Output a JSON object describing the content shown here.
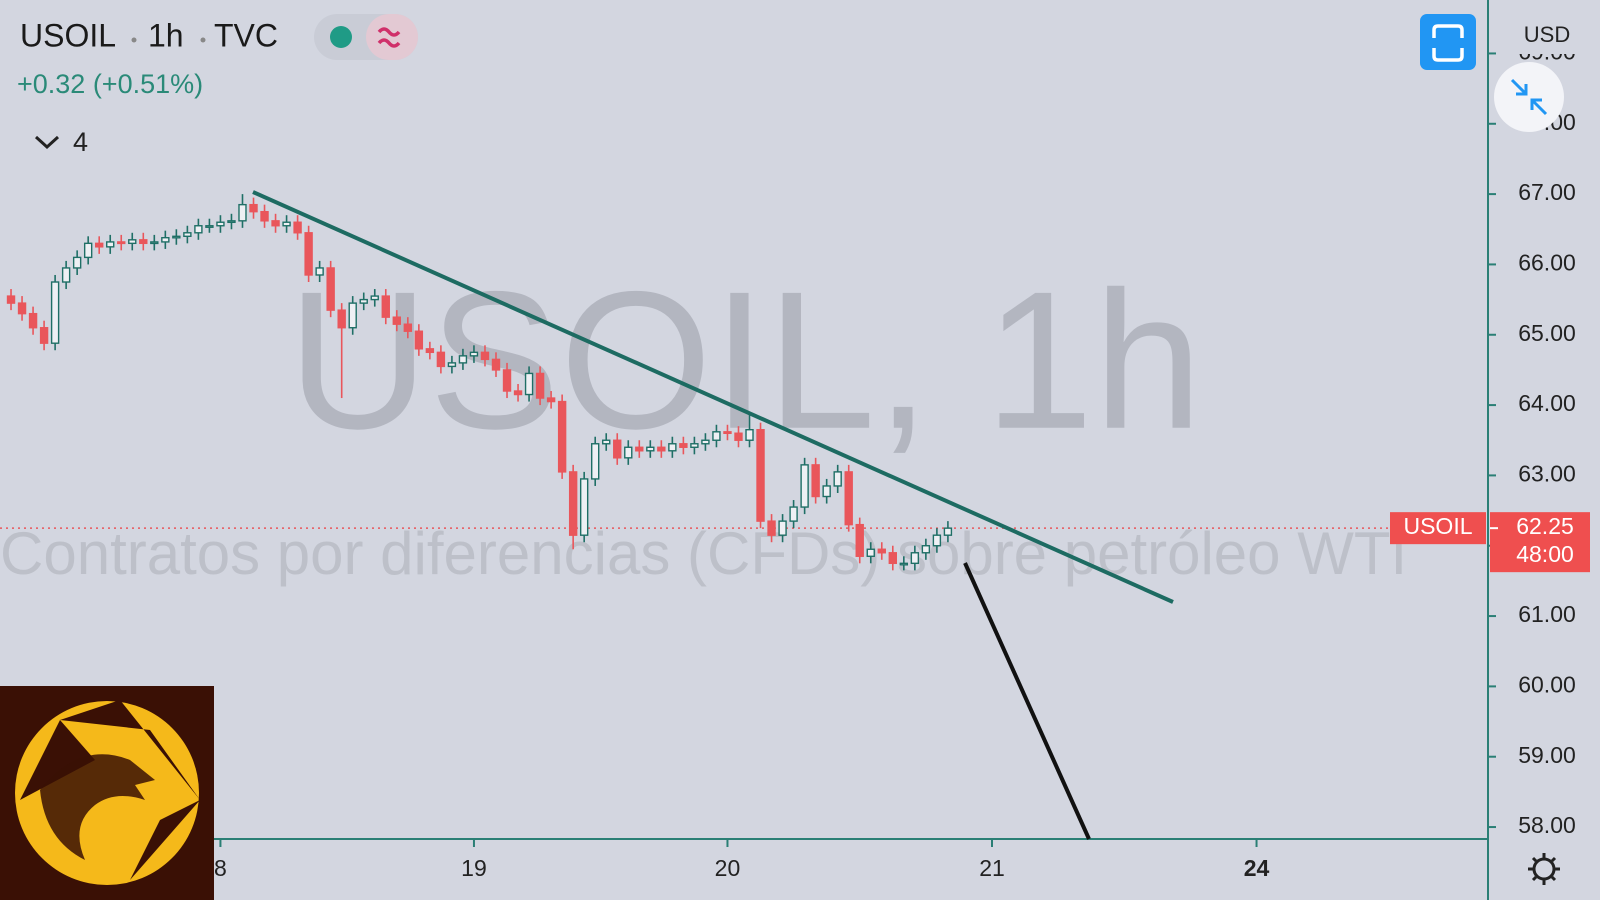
{
  "header": {
    "symbol": "USOIL",
    "interval": "1h",
    "exchange": "TVC",
    "change": "+0.32 (+0.51%)",
    "indicator_count": "4",
    "currency": "USD"
  },
  "chart_data": {
    "type": "candlestick",
    "watermark": "USOIL, 1h",
    "subtitle": "Contratos por diferencias (CFDs) sobre petróleo WTI",
    "xlim": [
      -43,
      92
    ],
    "xticks": [
      {
        "value": -23,
        "label": "8"
      },
      {
        "value": 0,
        "label": "19"
      },
      {
        "value": 23,
        "label": "20"
      },
      {
        "value": 47,
        "label": "21"
      },
      {
        "value": 71,
        "label": "24"
      }
    ],
    "ylim": [
      57.83,
      69.76
    ],
    "yticks": [
      {
        "value": 58,
        "label": "58.00"
      },
      {
        "value": 59,
        "label": "59.00"
      },
      {
        "value": 60,
        "label": "60.00"
      },
      {
        "value": 61,
        "label": "61.00"
      },
      {
        "value": 62,
        "label": "62.00"
      },
      {
        "value": 63,
        "label": "63.00"
      },
      {
        "value": 64,
        "label": "64.00"
      },
      {
        "value": 65,
        "label": "65.00"
      },
      {
        "value": 66,
        "label": "66.00"
      },
      {
        "value": 67,
        "label": "67.00"
      },
      {
        "value": 68,
        "label": "68.00"
      },
      {
        "value": 69,
        "label": "69.00"
      }
    ],
    "last_price": {
      "value": 62.25,
      "label": "62.25"
    },
    "countdown": "48:00",
    "up_color": "#1f6f66",
    "down_color": "#e9565b",
    "series": [
      {
        "name": "USOIL",
        "x": [
          -42,
          -41,
          -40,
          -39,
          -38,
          -37,
          -36,
          -35,
          -34,
          -33,
          -32,
          -31,
          -30,
          -29,
          -28,
          -27,
          -26,
          -25,
          -24,
          -23,
          -22,
          -21,
          -20,
          -19,
          -18,
          -17,
          -16,
          -15,
          -14,
          -13,
          -12,
          -11,
          -10,
          -9,
          -8,
          -7,
          -6,
          -5,
          -4,
          -3,
          -2,
          -1,
          0,
          1,
          2,
          3,
          4,
          5,
          6,
          7,
          8,
          9,
          10,
          11,
          12,
          13,
          14,
          15,
          16,
          17,
          18,
          19,
          20,
          21,
          22,
          23,
          24,
          25,
          26,
          27,
          28,
          29,
          30,
          31,
          32,
          33,
          34,
          35,
          36,
          37,
          38,
          39,
          40,
          41,
          42,
          43
        ],
        "open": [
          65.55,
          65.45,
          65.3,
          65.1,
          64.88,
          65.75,
          65.95,
          66.1,
          66.3,
          66.25,
          66.32,
          66.3,
          66.35,
          66.3,
          66.32,
          66.38,
          66.4,
          66.45,
          66.55,
          66.55,
          66.6,
          66.62,
          66.85,
          66.75,
          66.62,
          66.55,
          66.6,
          66.45,
          65.85,
          65.95,
          65.35,
          65.1,
          65.45,
          65.5,
          65.55,
          65.25,
          65.15,
          65.05,
          64.8,
          64.75,
          64.55,
          64.6,
          64.7,
          64.75,
          64.65,
          64.5,
          64.2,
          64.15,
          64.45,
          64.1,
          64.05,
          63.05,
          62.15,
          62.95,
          63.45,
          63.5,
          63.25,
          63.4,
          63.35,
          63.4,
          63.35,
          63.45,
          63.4,
          63.45,
          63.5,
          63.62,
          63.6,
          63.5,
          63.65,
          62.35,
          62.15,
          62.35,
          62.55,
          63.15,
          62.7,
          62.85,
          63.05,
          62.3,
          61.85,
          61.95,
          61.9,
          61.75,
          61.75,
          61.9,
          62.0,
          62.15
        ],
        "high": [
          65.65,
          65.55,
          65.4,
          65.2,
          65.85,
          66.05,
          66.2,
          66.4,
          66.4,
          66.42,
          66.42,
          66.45,
          66.45,
          66.42,
          66.48,
          66.5,
          66.55,
          66.65,
          66.65,
          66.7,
          66.72,
          67.0,
          66.95,
          66.85,
          66.72,
          66.7,
          66.7,
          66.55,
          66.05,
          66.05,
          65.45,
          65.55,
          65.6,
          65.65,
          65.65,
          65.35,
          65.25,
          65.15,
          64.9,
          64.85,
          64.7,
          64.8,
          64.85,
          64.85,
          64.75,
          64.6,
          64.3,
          64.55,
          64.55,
          64.2,
          64.15,
          63.15,
          63.05,
          63.55,
          63.6,
          63.6,
          63.5,
          63.5,
          63.5,
          63.5,
          63.55,
          63.55,
          63.55,
          63.6,
          63.72,
          63.72,
          63.7,
          63.9,
          63.75,
          62.45,
          62.45,
          62.65,
          63.25,
          63.25,
          62.95,
          63.15,
          63.15,
          62.4,
          62.05,
          62.05,
          62.0,
          61.85,
          62.0,
          62.1,
          62.25,
          62.35
        ],
        "low": [
          65.35,
          65.2,
          65.0,
          64.78,
          64.78,
          65.65,
          65.85,
          66.0,
          66.15,
          66.15,
          66.2,
          66.2,
          66.2,
          66.2,
          66.22,
          66.28,
          66.3,
          66.35,
          66.45,
          66.45,
          66.5,
          66.52,
          66.65,
          66.52,
          66.45,
          66.45,
          66.35,
          65.75,
          65.75,
          65.25,
          64.1,
          65.0,
          65.35,
          65.4,
          65.15,
          65.05,
          64.95,
          64.7,
          64.65,
          64.45,
          64.45,
          64.5,
          64.6,
          64.55,
          64.4,
          64.1,
          64.05,
          64.05,
          64.0,
          63.95,
          62.95,
          61.95,
          62.05,
          62.85,
          63.35,
          63.15,
          63.15,
          63.25,
          63.25,
          63.25,
          63.25,
          63.3,
          63.3,
          63.35,
          63.4,
          63.5,
          63.4,
          63.4,
          62.25,
          62.05,
          62.05,
          62.25,
          62.45,
          62.6,
          62.6,
          62.75,
          62.2,
          61.75,
          61.75,
          61.8,
          61.65,
          61.65,
          61.65,
          61.8,
          61.9,
          62.05
        ],
        "close": [
          65.45,
          65.3,
          65.1,
          64.88,
          65.75,
          65.95,
          66.1,
          66.3,
          66.25,
          66.32,
          66.3,
          66.35,
          66.3,
          66.32,
          66.38,
          66.4,
          66.45,
          66.55,
          66.55,
          66.6,
          66.62,
          66.85,
          66.75,
          66.62,
          66.55,
          66.6,
          66.45,
          65.85,
          65.95,
          65.35,
          65.1,
          65.45,
          65.5,
          65.55,
          65.25,
          65.15,
          65.05,
          64.8,
          64.75,
          64.55,
          64.6,
          64.7,
          64.75,
          64.65,
          64.5,
          64.2,
          64.15,
          64.45,
          64.1,
          64.05,
          63.05,
          62.15,
          62.95,
          63.45,
          63.5,
          63.25,
          63.4,
          63.35,
          63.4,
          63.35,
          63.45,
          63.4,
          63.45,
          63.5,
          63.62,
          63.6,
          63.5,
          63.65,
          62.35,
          62.15,
          62.35,
          62.55,
          63.15,
          62.7,
          62.85,
          63.05,
          62.3,
          61.85,
          61.95,
          61.9,
          61.75,
          61.75,
          61.9,
          62.0,
          62.15,
          62.25
        ]
      }
    ]
  }
}
